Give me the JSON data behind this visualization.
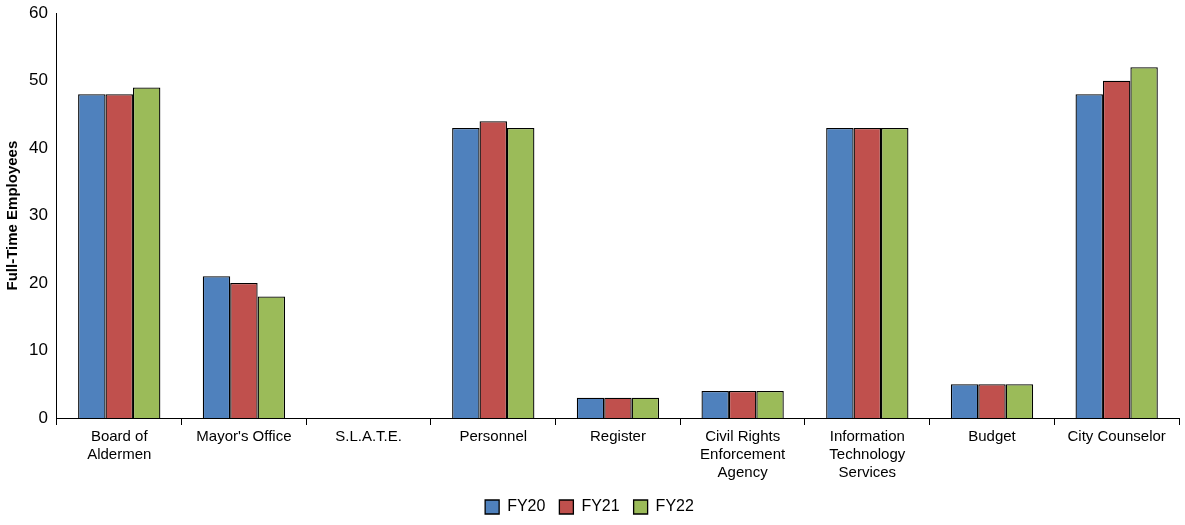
{
  "chart_data": {
    "type": "bar",
    "ylabel": "Full-Time Employees",
    "categories": [
      "Board of Aldermen",
      "Mayor's Office",
      "S.L.A.T.E.",
      "Personnel",
      "Register",
      "Civil Rights Enforcement Agency",
      "Information Technology Services",
      "Budget",
      "City Counselor"
    ],
    "series": [
      {
        "name": "FY20",
        "color": "#4f81bd",
        "values": [
          48,
          21,
          0,
          43,
          3,
          4,
          43,
          5,
          48
        ]
      },
      {
        "name": "FY21",
        "color": "#c0504d",
        "values": [
          48,
          20,
          0,
          44,
          3,
          4,
          43,
          5,
          50
        ]
      },
      {
        "name": "FY22",
        "color": "#9bbb59",
        "values": [
          49,
          18,
          0,
          43,
          3,
          4,
          43,
          5,
          52
        ]
      }
    ],
    "ylim": [
      0,
      60
    ],
    "yticks": [
      0,
      10,
      20,
      30,
      40,
      50,
      60
    ],
    "grid": false,
    "legend": "bottom"
  }
}
